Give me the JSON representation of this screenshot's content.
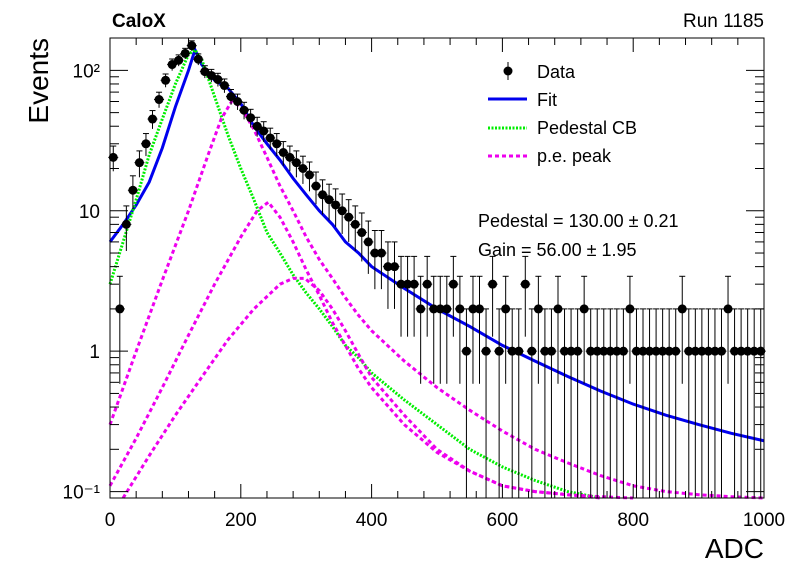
{
  "header": {
    "experiment": "CaloX",
    "run": "Run 1185"
  },
  "fit_results": {
    "pedestal": "Pedestal = 130.00 ± 0.21",
    "gain": "Gain = 56.00 ± 1.95"
  },
  "legend": {
    "placement": "top-right",
    "items": [
      {
        "label": "Data",
        "style": "marker"
      },
      {
        "label": "Fit",
        "style": "solid"
      },
      {
        "label": "Pedestal CB",
        "style": "dotted"
      },
      {
        "label": "p.e. peak",
        "style": "dashed"
      }
    ]
  },
  "colors": {
    "data": "#000000",
    "fit": "#0000ee",
    "pedestal": "#00ee00",
    "pe": "#ee00ee"
  },
  "chart_data": {
    "type": "scatter",
    "title": "",
    "xlabel": "ADC",
    "ylabel": "Events",
    "xlim": [
      0,
      1000
    ],
    "ylim": [
      0.09,
      170
    ],
    "ylog": true,
    "x_ticks": [
      0,
      200,
      400,
      600,
      800,
      1000
    ],
    "x_tick_labels": [
      "0",
      "200",
      "400",
      "600",
      "800",
      "1000"
    ],
    "y_ticks": [
      0.1,
      1,
      10,
      100
    ],
    "y_tick_labels": [
      "10⁻¹",
      "1",
      "10",
      "10²"
    ],
    "series": [
      {
        "name": "Data",
        "kind": "points",
        "x": [
          5,
          15,
          25,
          35,
          45,
          55,
          65,
          75,
          85,
          95,
          105,
          115,
          125,
          135,
          145,
          155,
          165,
          175,
          185,
          195,
          205,
          215,
          225,
          235,
          245,
          255,
          265,
          275,
          285,
          295,
          305,
          315,
          325,
          335,
          345,
          355,
          365,
          375,
          385,
          395,
          405,
          415,
          425,
          435,
          445,
          455,
          465,
          475,
          485,
          495,
          505,
          515,
          525,
          535,
          545,
          555,
          565,
          575,
          585,
          595,
          605,
          615,
          625,
          635,
          645,
          655,
          665,
          675,
          685,
          695,
          705,
          715,
          725,
          735,
          745,
          755,
          765,
          775,
          785,
          795,
          805,
          815,
          825,
          835,
          845,
          855,
          865,
          875,
          885,
          895,
          905,
          915,
          925,
          935,
          945,
          955,
          965,
          975,
          985,
          995
        ],
        "y": [
          24,
          2,
          8,
          14,
          22,
          30,
          45,
          62,
          85,
          110,
          118,
          132,
          150,
          120,
          98,
          92,
          86,
          78,
          65,
          60,
          52,
          46,
          40,
          37,
          33,
          30,
          26,
          24,
          22,
          20,
          18,
          15,
          13,
          12,
          11,
          10,
          9,
          8,
          7,
          6,
          5,
          5,
          4,
          4,
          3,
          3,
          3,
          2,
          3,
          2,
          2,
          2,
          3,
          2,
          1,
          2,
          2,
          1,
          3,
          1,
          2,
          1,
          1,
          3,
          1,
          2,
          1,
          1,
          2,
          1,
          1,
          1,
          2,
          1,
          1,
          1,
          1,
          1,
          1,
          2,
          1,
          1,
          1,
          1,
          1,
          1,
          1,
          2,
          1,
          1,
          1,
          1,
          1,
          1,
          2,
          1,
          1,
          1,
          1,
          1
        ]
      },
      {
        "name": "Fit",
        "kind": "line",
        "x": [
          0,
          20,
          40,
          60,
          80,
          100,
          120,
          130,
          140,
          160,
          180,
          200,
          220,
          240,
          260,
          280,
          300,
          320,
          340,
          360,
          380,
          400,
          450,
          500,
          550,
          600,
          650,
          700,
          750,
          800,
          850,
          900,
          950,
          1000
        ],
        "y": [
          6,
          8,
          11,
          16,
          28,
          55,
          100,
          140,
          110,
          85,
          75,
          58,
          40,
          30,
          23,
          17,
          13,
          10,
          8,
          6,
          5,
          4,
          2.8,
          2,
          1.5,
          1.1,
          0.85,
          0.66,
          0.52,
          0.42,
          0.35,
          0.3,
          0.26,
          0.23
        ]
      },
      {
        "name": "Pedestal CB",
        "kind": "line",
        "x": [
          0,
          20,
          40,
          60,
          80,
          100,
          120,
          130,
          140,
          160,
          180,
          200,
          220,
          240,
          260,
          280,
          300,
          320,
          340,
          360,
          380,
          400,
          450,
          500,
          550,
          600,
          650,
          700,
          750
        ],
        "y": [
          3,
          6,
          12,
          25,
          45,
          80,
          130,
          140,
          120,
          65,
          35,
          20,
          12,
          7,
          5,
          3.5,
          2.6,
          2,
          1.5,
          1.1,
          0.9,
          0.7,
          0.45,
          0.3,
          0.2,
          0.15,
          0.12,
          0.1,
          0.09
        ]
      },
      {
        "name": "p.e. peak 1",
        "kind": "line",
        "x": [
          0,
          40,
          80,
          120,
          150,
          170,
          186,
          200,
          220,
          240,
          260,
          280,
          300,
          320,
          340,
          360,
          380,
          400,
          450,
          500,
          550,
          600,
          650,
          700,
          750,
          800,
          850,
          900,
          950,
          1000
        ],
        "y": [
          0.3,
          1,
          3.2,
          10,
          25,
          45,
          60,
          55,
          38,
          24,
          15,
          10,
          6.5,
          4.5,
          3.3,
          2.4,
          1.8,
          1.4,
          0.85,
          0.55,
          0.38,
          0.27,
          0.2,
          0.16,
          0.13,
          0.11,
          0.1,
          0.095,
          0.092,
          0.09
        ]
      },
      {
        "name": "p.e. peak 2",
        "kind": "line",
        "x": [
          0,
          40,
          80,
          120,
          160,
          200,
          225,
          242,
          260,
          280,
          300,
          320,
          340,
          360,
          380,
          400,
          450,
          500,
          550,
          600,
          650,
          700,
          750,
          800
        ],
        "y": [
          0.11,
          0.24,
          0.55,
          1.3,
          3,
          6.5,
          10,
          11.5,
          9,
          6,
          3.8,
          2.5,
          1.6,
          1.1,
          0.75,
          0.55,
          0.3,
          0.19,
          0.14,
          0.11,
          0.1,
          0.095,
          0.092,
          0.09
        ]
      },
      {
        "name": "p.e. peak 3",
        "kind": "line",
        "x": [
          20,
          60,
          100,
          140,
          180,
          220,
          260,
          280,
          298,
          320,
          340,
          360,
          380,
          400,
          450,
          500,
          550,
          600,
          650,
          700,
          750
        ],
        "y": [
          0.09,
          0.18,
          0.35,
          0.65,
          1.2,
          2,
          3,
          3.3,
          3.3,
          2.7,
          2,
          1.4,
          0.95,
          0.65,
          0.35,
          0.2,
          0.14,
          0.11,
          0.1,
          0.095,
          0.09
        ]
      }
    ]
  }
}
